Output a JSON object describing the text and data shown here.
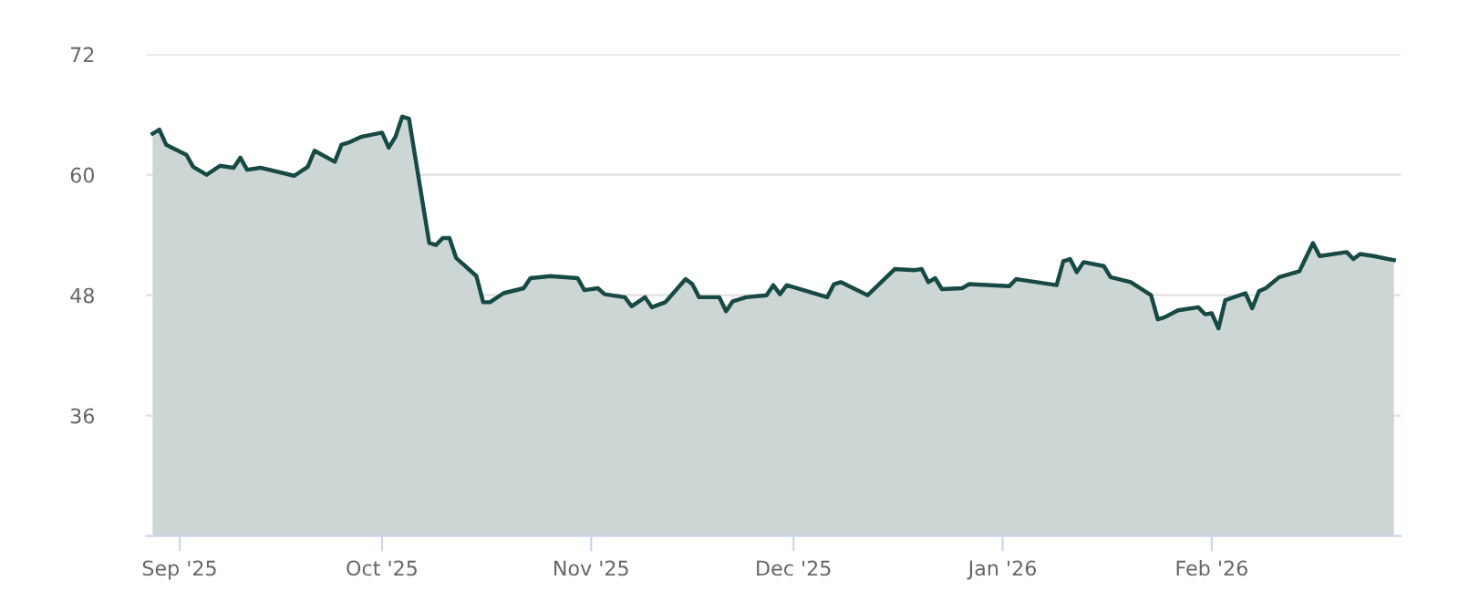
{
  "chart_data": {
    "type": "area",
    "xlim": [
      "2025-08-27",
      "2026-03-01"
    ],
    "ylim": [
      24,
      72
    ],
    "yticks": [
      36,
      48,
      60,
      72
    ],
    "xticks": [
      {
        "value": "2025-09-01",
        "label": "Sep '25"
      },
      {
        "value": "2025-10-01",
        "label": "Oct '25"
      },
      {
        "value": "2025-11-01",
        "label": "Nov '25"
      },
      {
        "value": "2025-12-01",
        "label": "Dec '25"
      },
      {
        "value": "2026-01-01",
        "label": "Jan '26"
      },
      {
        "value": "2026-02-01",
        "label": "Feb '26"
      }
    ],
    "grid": "y",
    "legend": false,
    "series": [
      {
        "color": "#174a45",
        "x": [
          "2025-08-28",
          "2025-08-29",
          "2025-08-30",
          "2025-09-02",
          "2025-09-03",
          "2025-09-05",
          "2025-09-07",
          "2025-09-09",
          "2025-09-10",
          "2025-09-11",
          "2025-09-13",
          "2025-09-18",
          "2025-09-20",
          "2025-09-21",
          "2025-09-24",
          "2025-09-25",
          "2025-09-26",
          "2025-09-28",
          "2025-10-01",
          "2025-10-02",
          "2025-10-03",
          "2025-10-04",
          "2025-10-05",
          "2025-10-08",
          "2025-10-09",
          "2025-10-10",
          "2025-10-11",
          "2025-10-12",
          "2025-10-15",
          "2025-10-16",
          "2025-10-17",
          "2025-10-19",
          "2025-10-22",
          "2025-10-23",
          "2025-10-26",
          "2025-10-30",
          "2025-10-31",
          "2025-11-02",
          "2025-11-03",
          "2025-11-06",
          "2025-11-07",
          "2025-11-09",
          "2025-11-10",
          "2025-11-12",
          "2025-11-15",
          "2025-11-16",
          "2025-11-17",
          "2025-11-20",
          "2025-11-21",
          "2025-11-22",
          "2025-11-24",
          "2025-11-27",
          "2025-11-28",
          "2025-11-29",
          "2025-11-30",
          "2025-12-06",
          "2025-12-07",
          "2025-12-08",
          "2025-12-12",
          "2025-12-14",
          "2025-12-16",
          "2025-12-19",
          "2025-12-20",
          "2025-12-21",
          "2025-12-22",
          "2025-12-23",
          "2025-12-26",
          "2025-12-27",
          "2026-01-02",
          "2026-01-03",
          "2026-01-04",
          "2026-01-09",
          "2026-01-10",
          "2026-01-11",
          "2026-01-12",
          "2026-01-13",
          "2026-01-16",
          "2026-01-17",
          "2026-01-20",
          "2026-01-23",
          "2026-01-24",
          "2026-01-25",
          "2026-01-27",
          "2026-01-30",
          "2026-01-31",
          "2026-02-01",
          "2026-02-02",
          "2026-02-03",
          "2026-02-06",
          "2026-02-07",
          "2026-02-08",
          "2026-02-09",
          "2026-02-11",
          "2026-02-14",
          "2026-02-16",
          "2026-02-17",
          "2026-02-21",
          "2026-02-22",
          "2026-02-23",
          "2026-02-25",
          "2026-02-28"
        ],
        "values": [
          64.1,
          64.5,
          63.0,
          62.0,
          60.8,
          60.0,
          60.9,
          60.7,
          61.7,
          60.5,
          60.7,
          59.9,
          60.8,
          62.4,
          61.3,
          63.0,
          63.2,
          63.8,
          64.2,
          62.7,
          63.8,
          65.8,
          65.6,
          53.2,
          53.0,
          53.7,
          53.7,
          51.7,
          49.9,
          47.3,
          47.3,
          48.2,
          48.7,
          49.7,
          49.9,
          49.7,
          48.5,
          48.7,
          48.1,
          47.8,
          46.9,
          47.8,
          46.8,
          47.3,
          49.6,
          49.1,
          47.8,
          47.8,
          46.4,
          47.4,
          47.8,
          48.0,
          49.0,
          48.1,
          49.0,
          47.8,
          49.1,
          49.3,
          48.0,
          49.3,
          50.6,
          50.5,
          50.6,
          49.3,
          49.7,
          48.6,
          48.7,
          49.1,
          48.9,
          49.6,
          49.5,
          49.0,
          51.4,
          51.6,
          50.3,
          51.3,
          50.9,
          49.8,
          49.3,
          48.0,
          45.6,
          45.8,
          46.5,
          46.8,
          46.1,
          46.2,
          44.7,
          47.5,
          48.2,
          46.7,
          48.4,
          48.7,
          49.8,
          50.4,
          53.2,
          51.9,
          52.3,
          51.6,
          52.1,
          51.9,
          51.5
        ]
      }
    ]
  }
}
